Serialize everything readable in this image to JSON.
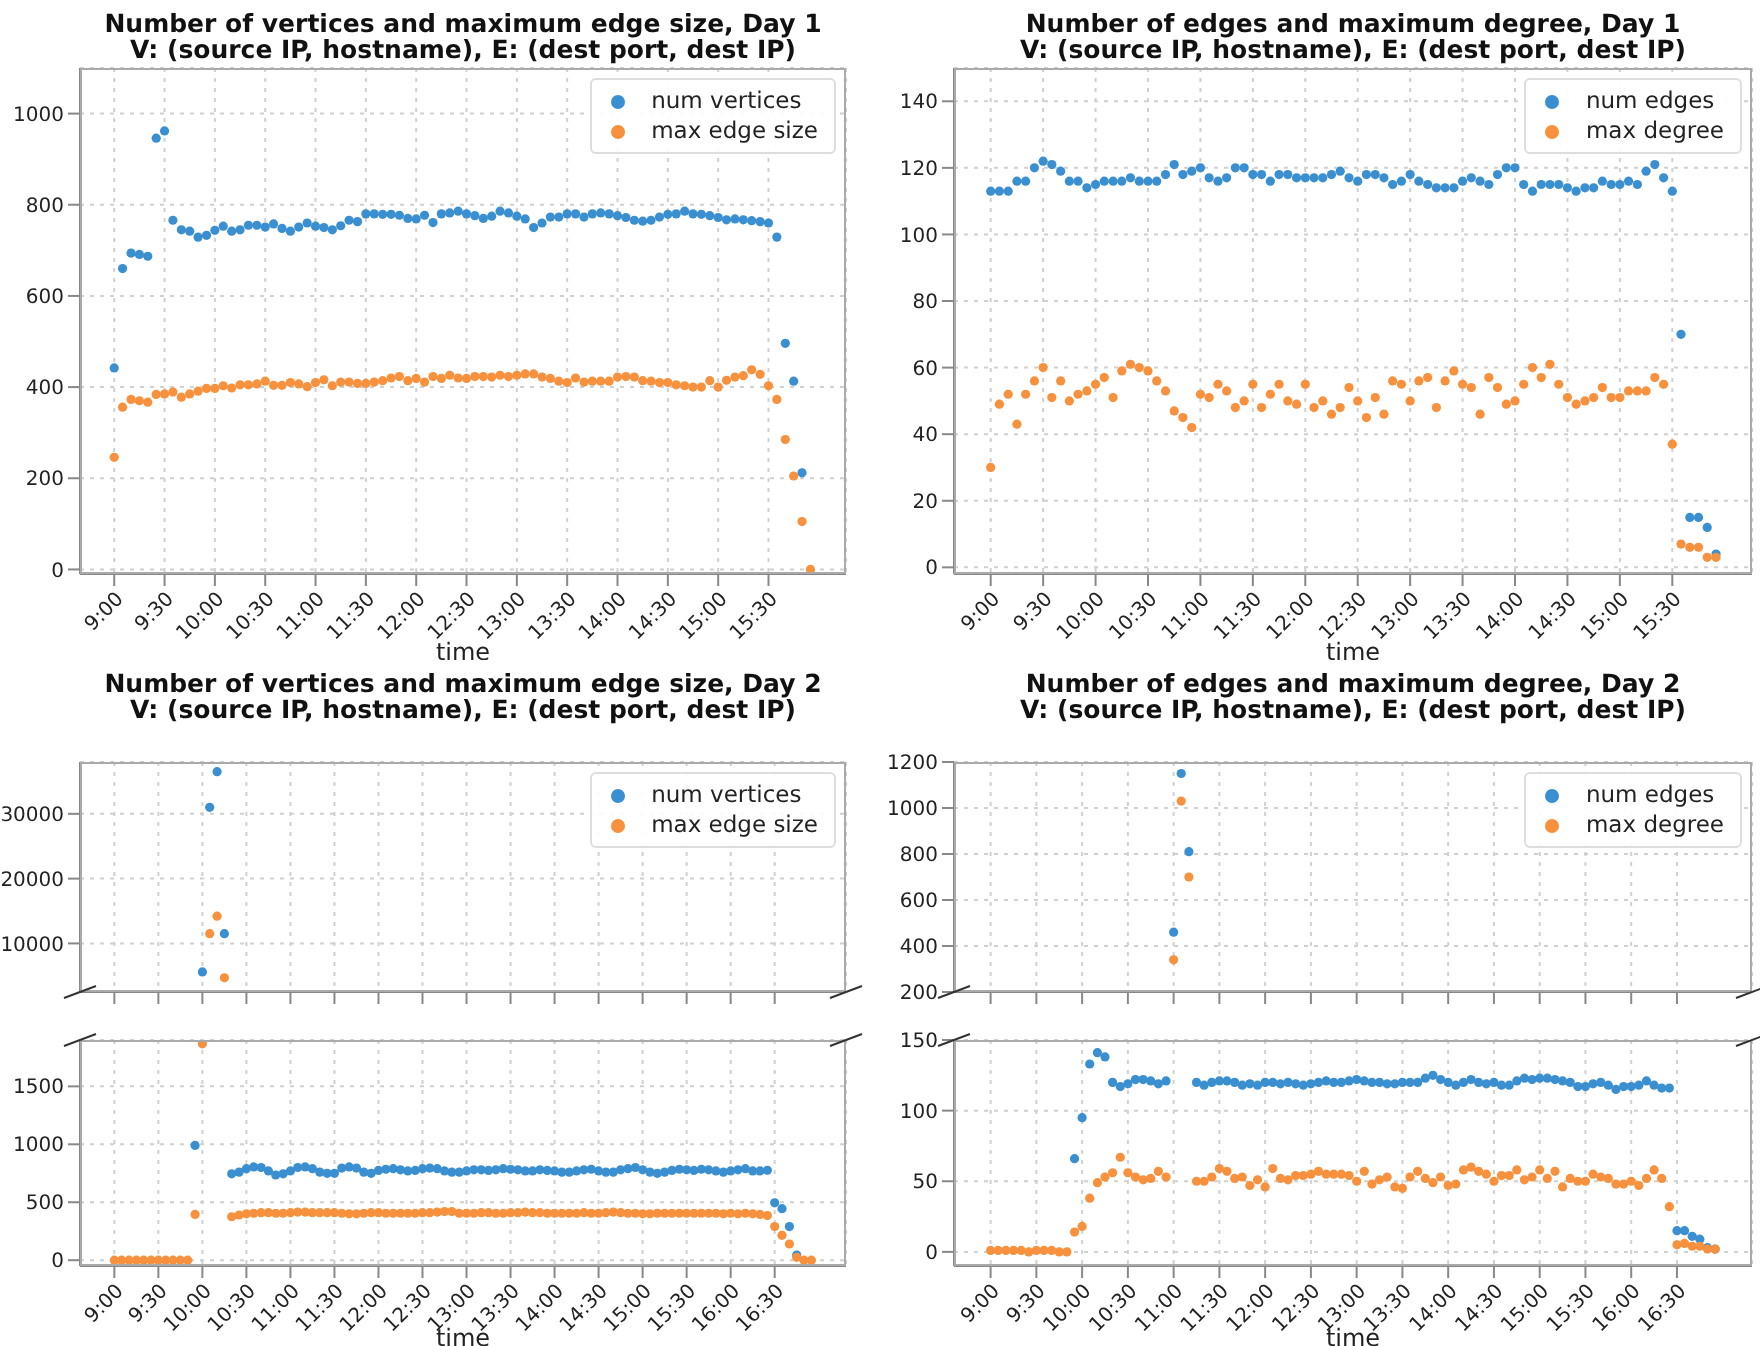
{
  "chart_data": [
    {
      "type": "scatter",
      "title": "Number of vertices and maximum edge size, Day 1",
      "subtitle": "V: (source IP, hostname), E: (dest port, dest IP)",
      "xlabel": "time",
      "grid": true,
      "legend": "top right",
      "marker": "circle",
      "x": [
        9,
        9.083,
        9.167,
        9.25,
        9.333,
        9.417,
        9.5,
        9.583,
        9.667,
        9.75,
        9.833,
        9.917,
        10,
        10.083,
        10.167,
        10.25,
        10.333,
        10.417,
        10.5,
        10.583,
        10.667,
        10.75,
        10.833,
        10.917,
        11,
        11.083,
        11.167,
        11.25,
        11.333,
        11.417,
        11.5,
        11.583,
        11.667,
        11.75,
        11.833,
        11.917,
        12,
        12.083,
        12.167,
        12.25,
        12.333,
        12.417,
        12.5,
        12.583,
        12.667,
        12.75,
        12.833,
        12.917,
        13,
        13.083,
        13.167,
        13.25,
        13.333,
        13.417,
        13.5,
        13.583,
        13.667,
        13.75,
        13.833,
        13.917,
        14,
        14.083,
        14.167,
        14.25,
        14.333,
        14.417,
        14.5,
        14.583,
        14.667,
        14.75,
        14.833,
        14.917,
        15,
        15.083,
        15.167,
        15.25,
        15.333,
        15.417,
        15.5,
        15.583,
        15.667,
        15.75,
        15.833,
        15.917
      ],
      "xlim": [
        8.66,
        16.27
      ],
      "xticks": [
        {
          "value": 9,
          "label": "9:00"
        },
        {
          "value": 9.5,
          "label": "9:30"
        },
        {
          "value": 10,
          "label": "10:00"
        },
        {
          "value": 10.5,
          "label": "10:30"
        },
        {
          "value": 11,
          "label": "11:00"
        },
        {
          "value": 11.5,
          "label": "11:30"
        },
        {
          "value": 12,
          "label": "12:00"
        },
        {
          "value": 12.5,
          "label": "12:30"
        },
        {
          "value": 13,
          "label": "13:00"
        },
        {
          "value": 13.5,
          "label": "13:30"
        },
        {
          "value": 14,
          "label": "14:00"
        },
        {
          "value": 14.5,
          "label": "14:30"
        },
        {
          "value": 15,
          "label": "15:00"
        },
        {
          "value": 15.5,
          "label": "15:30"
        }
      ],
      "ylim": [
        -10,
        1100
      ],
      "yticks": [
        0,
        200,
        400,
        600,
        800,
        1000
      ],
      "series": [
        {
          "name": "num vertices",
          "color": "#3a8fd0",
          "values": [
            442,
            660,
            694,
            691,
            687,
            946,
            962,
            766,
            745,
            742,
            729,
            733,
            744,
            753,
            742,
            745,
            755,
            755,
            751,
            758,
            748,
            742,
            751,
            760,
            753,
            750,
            745,
            754,
            766,
            763,
            780,
            780,
            779,
            779,
            777,
            770,
            769,
            777,
            761,
            780,
            782,
            786,
            780,
            776,
            770,
            775,
            786,
            782,
            775,
            769,
            750,
            760,
            773,
            773,
            780,
            780,
            773,
            780,
            782,
            780,
            776,
            772,
            766,
            764,
            766,
            773,
            779,
            780,
            786,
            780,
            779,
            776,
            772,
            767,
            769,
            767,
            765,
            763,
            760,
            729,
            496,
            413,
            212,
            null
          ]
        },
        {
          "name": "max edge size",
          "color": "#f7913d",
          "values": [
            246,
            356,
            373,
            370,
            367,
            384,
            385,
            389,
            378,
            385,
            391,
            397,
            397,
            403,
            398,
            405,
            405,
            407,
            413,
            404,
            404,
            410,
            407,
            401,
            410,
            416,
            403,
            411,
            411,
            408,
            408,
            411,
            414,
            420,
            423,
            414,
            419,
            411,
            423,
            419,
            426,
            420,
            419,
            423,
            423,
            422,
            426,
            423,
            426,
            429,
            429,
            422,
            419,
            413,
            410,
            420,
            411,
            413,
            413,
            413,
            422,
            423,
            422,
            414,
            413,
            410,
            410,
            405,
            403,
            400,
            400,
            414,
            400,
            415,
            422,
            425,
            438,
            428,
            403,
            373,
            285,
            205,
            105,
            0
          ]
        }
      ]
    },
    {
      "type": "scatter",
      "title": "Number of edges and maximum degree, Day 1",
      "subtitle": "V: (source IP, hostname), E: (dest port, dest IP)",
      "xlabel": "time",
      "grid": true,
      "legend": "top right",
      "marker": "circle",
      "x": [
        9,
        9.083,
        9.167,
        9.25,
        9.333,
        9.417,
        9.5,
        9.583,
        9.667,
        9.75,
        9.833,
        9.917,
        10,
        10.083,
        10.167,
        10.25,
        10.333,
        10.417,
        10.5,
        10.583,
        10.667,
        10.75,
        10.833,
        10.917,
        11,
        11.083,
        11.167,
        11.25,
        11.333,
        11.417,
        11.5,
        11.583,
        11.667,
        11.75,
        11.833,
        11.917,
        12,
        12.083,
        12.167,
        12.25,
        12.333,
        12.417,
        12.5,
        12.583,
        12.667,
        12.75,
        12.833,
        12.917,
        13,
        13.083,
        13.167,
        13.25,
        13.333,
        13.417,
        13.5,
        13.583,
        13.667,
        13.75,
        13.833,
        13.917,
        14,
        14.083,
        14.167,
        14.25,
        14.333,
        14.417,
        14.5,
        14.583,
        14.667,
        14.75,
        14.833,
        14.917,
        15,
        15.083,
        15.167,
        15.25,
        15.333,
        15.417,
        15.5,
        15.583,
        15.667,
        15.75,
        15.833,
        15.917
      ],
      "xlim": [
        8.65,
        16.26
      ],
      "xticks": [
        {
          "value": 9,
          "label": "9:00"
        },
        {
          "value": 9.5,
          "label": "9:30"
        },
        {
          "value": 10,
          "label": "10:00"
        },
        {
          "value": 10.5,
          "label": "10:30"
        },
        {
          "value": 11,
          "label": "11:00"
        },
        {
          "value": 11.5,
          "label": "11:30"
        },
        {
          "value": 12,
          "label": "12:00"
        },
        {
          "value": 12.5,
          "label": "12:30"
        },
        {
          "value": 13,
          "label": "13:00"
        },
        {
          "value": 13.5,
          "label": "13:30"
        },
        {
          "value": 14,
          "label": "14:00"
        },
        {
          "value": 14.5,
          "label": "14:30"
        },
        {
          "value": 15,
          "label": "15:00"
        },
        {
          "value": 15.5,
          "label": "15:30"
        }
      ],
      "ylim": [
        -2,
        150
      ],
      "yticks": [
        0,
        20,
        40,
        60,
        80,
        100,
        120,
        140
      ],
      "series": [
        {
          "name": "num edges",
          "color": "#3a8fd0",
          "values": [
            113,
            113,
            113,
            116,
            116,
            120,
            122,
            121,
            119,
            116,
            116,
            114,
            115,
            116,
            116,
            116,
            117,
            116,
            116,
            116,
            118,
            121,
            118,
            119,
            120,
            117,
            116,
            117,
            120,
            120,
            118,
            118,
            116,
            118,
            118,
            117,
            117,
            117,
            117,
            118,
            119,
            117,
            116,
            118,
            118,
            117,
            115,
            116,
            118,
            116,
            115,
            114,
            114,
            114,
            116,
            117,
            116,
            115,
            118,
            120,
            120,
            115,
            113,
            115,
            115,
            115,
            114,
            113,
            114,
            114,
            116,
            115,
            115,
            116,
            115,
            119,
            121,
            117,
            113,
            70,
            15,
            15,
            12,
            4
          ]
        },
        {
          "name": "max degree",
          "color": "#f7913d",
          "values": [
            30,
            49,
            52,
            43,
            52,
            56,
            60,
            51,
            56,
            50,
            52,
            53,
            55,
            57,
            51,
            59,
            61,
            60,
            59,
            56,
            53,
            47,
            45,
            42,
            52,
            51,
            55,
            53,
            48,
            50,
            55,
            48,
            52,
            55,
            50,
            49,
            55,
            48,
            50,
            46,
            48,
            54,
            50,
            45,
            51,
            46,
            56,
            55,
            50,
            56,
            57,
            48,
            56,
            59,
            55,
            54,
            46,
            57,
            54,
            49,
            50,
            55,
            60,
            57,
            61,
            55,
            51,
            49,
            50,
            51,
            54,
            51,
            51,
            53,
            53,
            53,
            57,
            55,
            37,
            7,
            6,
            6,
            3,
            3
          ]
        }
      ]
    },
    {
      "type": "scatter",
      "title": "Number of vertices and maximum edge size, Day 2",
      "subtitle": "V: (source IP, hostname), E: (dest port, dest IP)",
      "grid": true,
      "legend": "top right",
      "marker": "circle",
      "tick_labels": "y",
      "xlim": [
        8.61,
        17.31
      ],
      "ylim": [
        2500,
        38000
      ],
      "yticks": [
        10000,
        20000,
        30000
      ],
      "xticks": [
        {
          "value": 9,
          "label": null
        },
        {
          "value": 9.5,
          "label": null
        },
        {
          "value": 10,
          "label": null
        },
        {
          "value": 10.5,
          "label": null
        },
        {
          "value": 11,
          "label": null
        },
        {
          "value": 11.5,
          "label": null
        },
        {
          "value": 12,
          "label": null
        },
        {
          "value": 12.5,
          "label": null
        },
        {
          "value": 13,
          "label": null
        },
        {
          "value": 13.5,
          "label": null
        },
        {
          "value": 14,
          "label": null
        },
        {
          "value": 14.5,
          "label": null
        },
        {
          "value": 15,
          "label": null
        },
        {
          "value": 15.5,
          "label": null
        },
        {
          "value": 16,
          "label": null
        },
        {
          "value": 16.5,
          "label": null
        }
      ],
      "series": [
        {
          "name": "num vertices",
          "color": "#3a8fd0",
          "x": [
            10,
            10.083,
            10.167,
            10.25
          ],
          "values": [
            5600,
            31000,
            36500,
            11500
          ]
        },
        {
          "name": "max edge size",
          "color": "#f7913d",
          "x": [
            10.083,
            10.167,
            10.25
          ],
          "values": [
            11500,
            14200,
            4700
          ]
        }
      ]
    },
    {
      "type": "scatter",
      "xlabel": "time",
      "grid": true,
      "marker": "circle",
      "x": [
        9,
        9.083,
        9.167,
        9.25,
        9.333,
        9.417,
        9.5,
        9.583,
        9.667,
        9.75,
        9.833,
        9.917,
        10,
        10.083,
        10.167,
        10.25,
        10.333,
        10.417,
        10.5,
        10.583,
        10.667,
        10.75,
        10.833,
        10.917,
        11,
        11.083,
        11.167,
        11.25,
        11.333,
        11.417,
        11.5,
        11.583,
        11.667,
        11.75,
        11.833,
        11.917,
        12,
        12.083,
        12.167,
        12.25,
        12.333,
        12.417,
        12.5,
        12.583,
        12.667,
        12.75,
        12.833,
        12.917,
        13,
        13.083,
        13.167,
        13.25,
        13.333,
        13.417,
        13.5,
        13.583,
        13.667,
        13.75,
        13.833,
        13.917,
        14,
        14.083,
        14.167,
        14.25,
        14.333,
        14.417,
        14.5,
        14.583,
        14.667,
        14.75,
        14.833,
        14.917,
        15,
        15.083,
        15.167,
        15.25,
        15.333,
        15.417,
        15.5,
        15.583,
        15.667,
        15.75,
        15.833,
        15.917,
        16,
        16.083,
        16.167,
        16.25,
        16.333,
        16.417,
        16.5,
        16.583,
        16.667,
        16.75,
        16.833,
        16.917
      ],
      "xlim": [
        8.61,
        17.31
      ],
      "xticks": [
        {
          "value": 9,
          "label": "9:00"
        },
        {
          "value": 9.5,
          "label": "9:30"
        },
        {
          "value": 10,
          "label": "10:00"
        },
        {
          "value": 10.5,
          "label": "10:30"
        },
        {
          "value": 11,
          "label": "11:00"
        },
        {
          "value": 11.5,
          "label": "11:30"
        },
        {
          "value": 12,
          "label": "12:00"
        },
        {
          "value": 12.5,
          "label": "12:30"
        },
        {
          "value": 13,
          "label": "13:00"
        },
        {
          "value": 13.5,
          "label": "13:30"
        },
        {
          "value": 14,
          "label": "14:00"
        },
        {
          "value": 14.5,
          "label": "14:30"
        },
        {
          "value": 15,
          "label": "15:00"
        },
        {
          "value": 15.5,
          "label": "15:30"
        },
        {
          "value": 16,
          "label": "16:00"
        },
        {
          "value": 16.5,
          "label": "16:30"
        }
      ],
      "ylim": [
        -50,
        1900
      ],
      "yticks": [
        0,
        500,
        1000,
        1500
      ],
      "series": [
        {
          "color": "#3a8fd0",
          "values": [
            null,
            null,
            null,
            null,
            null,
            null,
            null,
            null,
            null,
            null,
            null,
            990,
            null,
            null,
            null,
            null,
            745,
            760,
            790,
            805,
            800,
            770,
            735,
            745,
            770,
            800,
            805,
            790,
            760,
            750,
            750,
            795,
            805,
            795,
            760,
            750,
            775,
            785,
            790,
            780,
            770,
            775,
            790,
            795,
            790,
            770,
            760,
            760,
            770,
            780,
            780,
            775,
            780,
            790,
            785,
            780,
            770,
            770,
            780,
            775,
            770,
            760,
            760,
            770,
            780,
            785,
            770,
            760,
            760,
            780,
            790,
            800,
            780,
            760,
            750,
            760,
            775,
            785,
            780,
            775,
            785,
            780,
            770,
            760,
            770,
            780,
            790,
            770,
            770,
            776,
            495,
            445,
            290,
            45,
            null,
            null
          ]
        },
        {
          "color": "#f7913d",
          "values": [
            0,
            0,
            0,
            0,
            0,
            0,
            0,
            0,
            0,
            0,
            0,
            395,
            1867,
            null,
            null,
            null,
            375,
            390,
            400,
            405,
            410,
            410,
            405,
            405,
            410,
            415,
            415,
            410,
            410,
            410,
            410,
            405,
            400,
            400,
            405,
            410,
            410,
            405,
            405,
            405,
            405,
            405,
            410,
            410,
            415,
            420,
            420,
            405,
            405,
            405,
            410,
            410,
            405,
            405,
            410,
            410,
            415,
            410,
            410,
            405,
            405,
            405,
            405,
            405,
            410,
            405,
            405,
            410,
            415,
            410,
            405,
            405,
            400,
            400,
            405,
            405,
            405,
            405,
            405,
            405,
            405,
            405,
            405,
            400,
            405,
            400,
            405,
            400,
            395,
            385,
            290,
            215,
            140,
            25,
            0,
            0
          ]
        }
      ]
    },
    {
      "type": "scatter",
      "title": "Number of edges and maximum degree, Day 2",
      "subtitle": "V: (source IP, hostname), E: (dest port, dest IP)",
      "grid": true,
      "legend": "top right",
      "marker": "circle",
      "tick_labels": "y",
      "xlim": [
        8.6,
        17.32
      ],
      "ylim": [
        200,
        1200
      ],
      "yticks": [
        200,
        400,
        600,
        800,
        1000,
        1200
      ],
      "xticks": [
        {
          "value": 9,
          "label": null
        },
        {
          "value": 9.5,
          "label": null
        },
        {
          "value": 10,
          "label": null
        },
        {
          "value": 10.5,
          "label": null
        },
        {
          "value": 11,
          "label": null
        },
        {
          "value": 11.5,
          "label": null
        },
        {
          "value": 12,
          "label": null
        },
        {
          "value": 12.5,
          "label": null
        },
        {
          "value": 13,
          "label": null
        },
        {
          "value": 13.5,
          "label": null
        },
        {
          "value": 14,
          "label": null
        },
        {
          "value": 14.5,
          "label": null
        },
        {
          "value": 15,
          "label": null
        },
        {
          "value": 15.5,
          "label": null
        },
        {
          "value": 16,
          "label": null
        },
        {
          "value": 16.5,
          "label": null
        }
      ],
      "series": [
        {
          "name": "num edges",
          "color": "#3a8fd0",
          "x": [
            11,
            11.083,
            11.167
          ],
          "values": [
            460,
            1150,
            810
          ]
        },
        {
          "name": "max degree",
          "color": "#f7913d",
          "x": [
            11,
            11.083,
            11.167
          ],
          "values": [
            340,
            1030,
            700
          ]
        }
      ]
    },
    {
      "type": "scatter",
      "xlabel": "time",
      "grid": true,
      "marker": "circle",
      "x": [
        9,
        9.083,
        9.167,
        9.25,
        9.333,
        9.417,
        9.5,
        9.583,
        9.667,
        9.75,
        9.833,
        9.917,
        10,
        10.083,
        10.167,
        10.25,
        10.333,
        10.417,
        10.5,
        10.583,
        10.667,
        10.75,
        10.833,
        10.917,
        11,
        11.083,
        11.167,
        11.25,
        11.333,
        11.417,
        11.5,
        11.583,
        11.667,
        11.75,
        11.833,
        11.917,
        12,
        12.083,
        12.167,
        12.25,
        12.333,
        12.417,
        12.5,
        12.583,
        12.667,
        12.75,
        12.833,
        12.917,
        13,
        13.083,
        13.167,
        13.25,
        13.333,
        13.417,
        13.5,
        13.583,
        13.667,
        13.75,
        13.833,
        13.917,
        14,
        14.083,
        14.167,
        14.25,
        14.333,
        14.417,
        14.5,
        14.583,
        14.667,
        14.75,
        14.833,
        14.917,
        15,
        15.083,
        15.167,
        15.25,
        15.333,
        15.417,
        15.5,
        15.583,
        15.667,
        15.75,
        15.833,
        15.917,
        16,
        16.083,
        16.167,
        16.25,
        16.333,
        16.417,
        16.5,
        16.583,
        16.667,
        16.75,
        16.833,
        16.917
      ],
      "xlim": [
        8.6,
        17.32
      ],
      "xticks": [
        {
          "value": 9,
          "label": "9:00"
        },
        {
          "value": 9.5,
          "label": "9:30"
        },
        {
          "value": 10,
          "label": "10:00"
        },
        {
          "value": 10.5,
          "label": "10:30"
        },
        {
          "value": 11,
          "label": "11:00"
        },
        {
          "value": 11.5,
          "label": "11:30"
        },
        {
          "value": 12,
          "label": "12:00"
        },
        {
          "value": 12.5,
          "label": "12:30"
        },
        {
          "value": 13,
          "label": "13:00"
        },
        {
          "value": 13.5,
          "label": "13:30"
        },
        {
          "value": 14,
          "label": "14:00"
        },
        {
          "value": 14.5,
          "label": "14:30"
        },
        {
          "value": 15,
          "label": "15:00"
        },
        {
          "value": 15.5,
          "label": "15:30"
        },
        {
          "value": 16,
          "label": "16:00"
        },
        {
          "value": 16.5,
          "label": "16:30"
        }
      ],
      "ylim": [
        -10,
        150
      ],
      "yticks": [
        0,
        50,
        100,
        150
      ],
      "series": [
        {
          "color": "#3a8fd0",
          "values": [
            null,
            null,
            null,
            null,
            null,
            null,
            null,
            null,
            null,
            null,
            null,
            66,
            95,
            133,
            141,
            138,
            120,
            117,
            119,
            122,
            122,
            121,
            119,
            121,
            null,
            null,
            null,
            120,
            118,
            120,
            121,
            121,
            120,
            118,
            119,
            118,
            120,
            120,
            119,
            120,
            119,
            118,
            119,
            120,
            121,
            120,
            120,
            121,
            122,
            121,
            120,
            120,
            119,
            119,
            120,
            120,
            120,
            123,
            125,
            122,
            120,
            118,
            120,
            122,
            120,
            119,
            120,
            118,
            118,
            121,
            123,
            122,
            123,
            123,
            122,
            121,
            120,
            117,
            117,
            119,
            120,
            118,
            115,
            117,
            117,
            118,
            121,
            118,
            116,
            116,
            15,
            15,
            11,
            9,
            3,
            2
          ]
        },
        {
          "color": "#f7913d",
          "values": [
            1,
            1,
            1,
            1,
            1,
            0,
            1,
            1,
            1,
            0,
            0,
            14,
            18,
            38,
            49,
            53,
            56,
            67,
            56,
            53,
            51,
            52,
            57,
            53,
            null,
            null,
            null,
            50,
            50,
            53,
            59,
            57,
            52,
            53,
            47,
            51,
            46,
            59,
            52,
            51,
            54,
            54,
            55,
            57,
            55,
            55,
            55,
            54,
            50,
            57,
            48,
            51,
            53,
            46,
            45,
            53,
            57,
            52,
            49,
            53,
            47,
            48,
            58,
            60,
            57,
            55,
            50,
            54,
            54,
            58,
            51,
            53,
            58,
            52,
            57,
            46,
            52,
            50,
            50,
            55,
            53,
            52,
            48,
            48,
            50,
            47,
            52,
            58,
            52,
            32,
            5,
            6,
            4,
            4,
            2,
            2
          ]
        }
      ]
    }
  ]
}
